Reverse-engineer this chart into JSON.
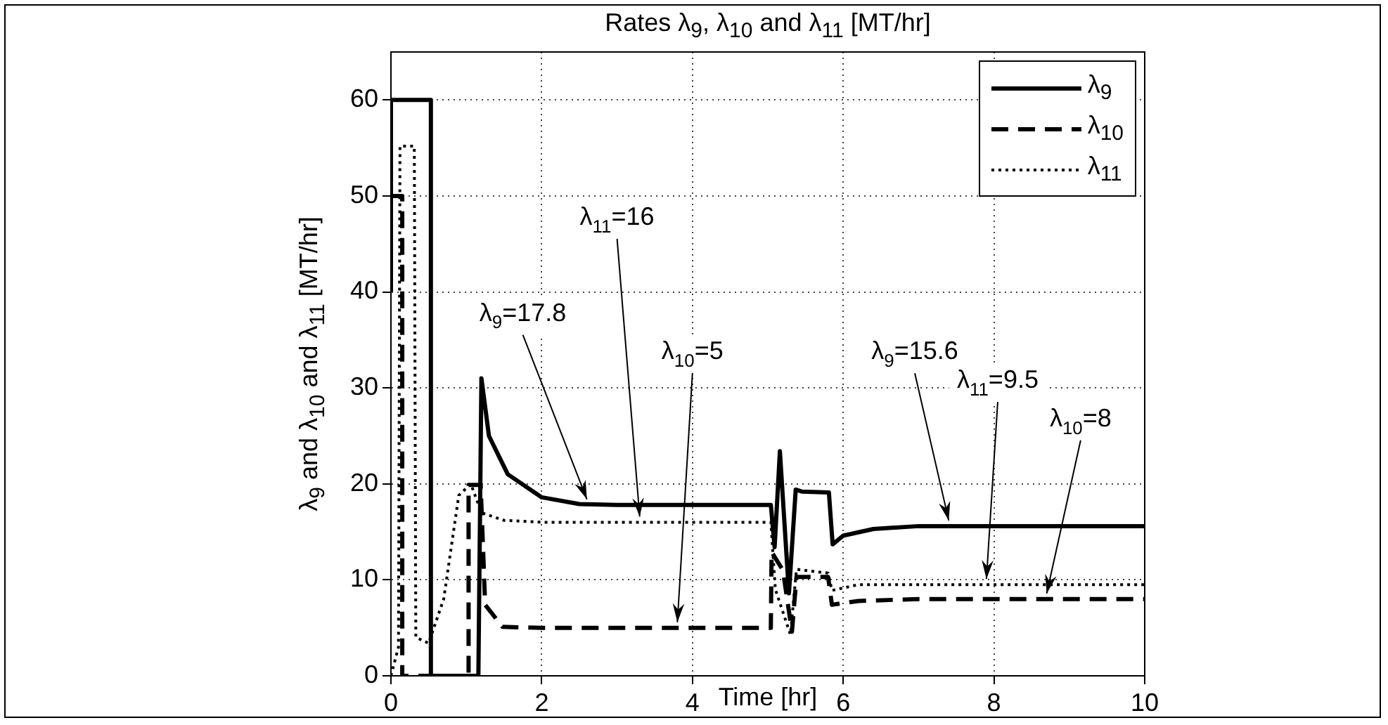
{
  "chart_data": {
    "type": "line",
    "title": "Rates λ$_{9}$, λ$_{10}$ and λ$_{11}$ [MT/hr]",
    "xlabel": "Time  [hr]",
    "ylabel": "λ$_{9}$ and λ$_{10}$ and λ$_{11}$   [MT/hr]",
    "xlim": [
      0,
      10
    ],
    "xticks": [
      0,
      2,
      4,
      6,
      8,
      10
    ],
    "ylim": [
      0,
      65
    ],
    "yticks": [
      0,
      10,
      20,
      30,
      40,
      50,
      60
    ],
    "grid": true,
    "legend": "top right",
    "marker": "none",
    "series": [
      {
        "name": "λ$_{9}$",
        "color": "#000000",
        "line_style": "solid",
        "x": [
          0,
          0,
          0.53,
          0.53,
          1.16,
          1.2,
          1.3,
          1.55,
          2,
          2.5,
          3,
          5.04,
          5.09,
          5.16,
          5.28,
          5.37,
          5.45,
          5.81,
          5.86,
          6.0,
          6.4,
          7,
          8,
          10
        ],
        "values": [
          40,
          60,
          60,
          0,
          0,
          31,
          25,
          21,
          18.6,
          17.9,
          17.8,
          17.8,
          13.4,
          23.4,
          8.6,
          19.4,
          19.2,
          19.1,
          13.7,
          14.6,
          15.3,
          15.6,
          15.6,
          15.6
        ]
      },
      {
        "name": "λ$_{10}$",
        "color": "#000000",
        "line_style": "dashed",
        "x": [
          0,
          0.15,
          0.15,
          1.03,
          1.03,
          1.19,
          1.25,
          1.48,
          2,
          5.04,
          5.05,
          5.2,
          5.32,
          5.38,
          5.8,
          5.85,
          6.2,
          7,
          10
        ],
        "values": [
          50,
          50,
          0,
          0,
          19.9,
          19.9,
          7.4,
          5.1,
          5,
          5,
          12.9,
          11,
          4.6,
          10.3,
          10.3,
          7.4,
          7.8,
          8,
          8
        ]
      },
      {
        "name": "λ$_{11}$",
        "color": "#000000",
        "line_style": "dotted",
        "x": [
          0,
          0.1,
          0.12,
          0.31,
          0.33,
          0.5,
          0.7,
          0.9,
          1.06,
          1.2,
          1.5,
          2,
          5.04,
          5.1,
          5.3,
          5.38,
          5.8,
          5.85,
          6.2,
          10
        ],
        "values": [
          0,
          3,
          55.2,
          55.2,
          4,
          3.4,
          8,
          18.8,
          20,
          17,
          16.2,
          16,
          16,
          9,
          4.3,
          11.1,
          10.7,
          8.9,
          9.5,
          9.5
        ]
      }
    ],
    "annotations": [
      {
        "text": "λ$_{9}$=17.8",
        "x": 2.6,
        "y": 17.8
      },
      {
        "text": "λ$_{11}$=16",
        "x": 3.3,
        "y": 16
      },
      {
        "text": "λ$_{10}$=5",
        "x": 3.8,
        "y": 5
      },
      {
        "text": "λ$_{9}$=15.6",
        "x": 7.4,
        "y": 15.6
      },
      {
        "text": "λ$_{11}$=9.5",
        "x": 7.9,
        "y": 9.5
      },
      {
        "text": "λ$_{10}$=8",
        "x": 8.7,
        "y": 8
      }
    ]
  }
}
